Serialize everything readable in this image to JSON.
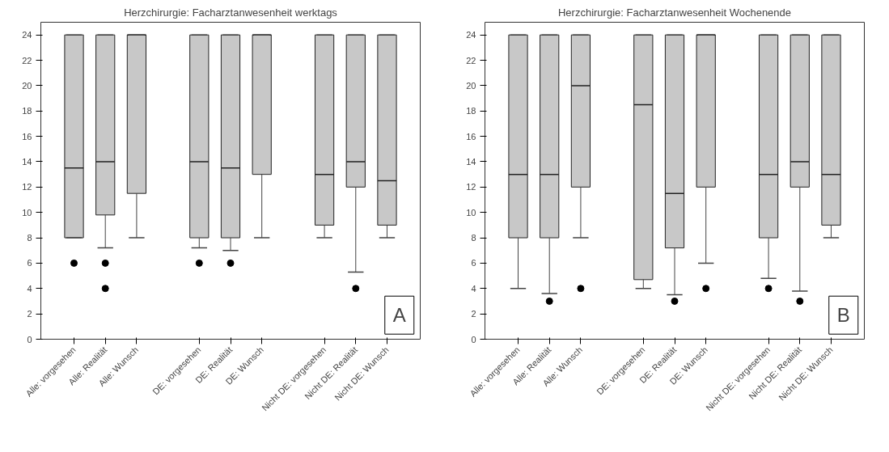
{
  "chart_data": [
    {
      "type": "box",
      "title": "Herzchirurgie: Facharztanwesenheit werktags",
      "categories": [
        "Alle: vorgesehen",
        "Alle: Realität",
        "Alle: Wunsch",
        null,
        "DE: vorgesehen",
        "DE: Realität",
        "DE: Wunsch",
        null,
        "Nicht DE: vorgesehen",
        "Nicht DE: Realität",
        "Nicht DE: Wunsch"
      ],
      "boxes": [
        {
          "low": 8,
          "q1": 8,
          "median": 13.5,
          "q3": 24,
          "high": 24,
          "outliers": [
            6
          ]
        },
        {
          "low": 7.2,
          "q1": 9.8,
          "median": 14,
          "q3": 24,
          "high": 24,
          "outliers": [
            6,
            4
          ]
        },
        {
          "low": 8,
          "q1": 11.5,
          "median": 24,
          "q3": 24,
          "high": 24
        },
        null,
        {
          "low": 7.2,
          "q1": 8,
          "median": 14,
          "q3": 24,
          "high": 24,
          "outliers": [
            6
          ]
        },
        {
          "low": 7,
          "q1": 8,
          "median": 13.5,
          "q3": 24,
          "high": 24,
          "outliers": [
            6
          ]
        },
        {
          "low": 8,
          "q1": 13,
          "median": 24,
          "q3": 24,
          "high": 24
        },
        null,
        {
          "low": 8,
          "q1": 9,
          "median": 13,
          "q3": 24,
          "high": 24
        },
        {
          "low": 5.3,
          "q1": 12,
          "median": 14,
          "q3": 24,
          "high": 24,
          "outliers": [
            4
          ]
        },
        {
          "low": 8,
          "q1": 9,
          "median": 12.5,
          "q3": 24,
          "high": 24
        }
      ],
      "color": "#c8c8c8",
      "ylim": [
        0,
        25
      ],
      "yticks": [
        0,
        2,
        4,
        6,
        8,
        10,
        12,
        14,
        16,
        18,
        20,
        22,
        24
      ],
      "grid": false,
      "annotations": [
        "A"
      ]
    },
    {
      "type": "box",
      "title": "Herzchirurgie: Facharztanwesenheit Wochenende",
      "categories": [
        "Alle: vorgesehen",
        "Alle: Realität",
        "Alle: Wunsch",
        null,
        "DE: vorgesehen",
        "DE: Realität",
        "DE: Wunsch",
        null,
        "Nicht DE: vorgesehen",
        "Nicht DE: Realität",
        "Nicht DE: Wunsch"
      ],
      "boxes": [
        {
          "low": 4,
          "q1": 8,
          "median": 13,
          "q3": 24,
          "high": 24
        },
        {
          "low": 3.6,
          "q1": 8,
          "median": 13,
          "q3": 24,
          "high": 24,
          "outliers": [
            3
          ]
        },
        {
          "low": 8,
          "q1": 12,
          "median": 20,
          "q3": 24,
          "high": 24,
          "outliers": [
            4
          ]
        },
        null,
        {
          "low": 4,
          "q1": 4.7,
          "median": 18.5,
          "q3": 24,
          "high": 24
        },
        {
          "low": 3.5,
          "q1": 7.2,
          "median": 11.5,
          "q3": 24,
          "high": 24,
          "outliers": [
            3
          ]
        },
        {
          "low": 6,
          "q1": 12,
          "median": 24,
          "q3": 24,
          "high": 24,
          "outliers": [
            4
          ]
        },
        null,
        {
          "low": 4.8,
          "q1": 8,
          "median": 13,
          "q3": 24,
          "high": 24,
          "outliers": [
            4
          ]
        },
        {
          "low": 3.8,
          "q1": 12,
          "median": 14,
          "q3": 24,
          "high": 24,
          "outliers": [
            3
          ]
        },
        {
          "low": 8,
          "q1": 9,
          "median": 13,
          "q3": 24,
          "high": 24
        }
      ],
      "color": "#c8c8c8",
      "ylim": [
        0,
        25
      ],
      "yticks": [
        0,
        2,
        4,
        6,
        8,
        10,
        12,
        14,
        16,
        18,
        20,
        22,
        24
      ],
      "grid": false,
      "annotations": [
        "B"
      ]
    }
  ]
}
